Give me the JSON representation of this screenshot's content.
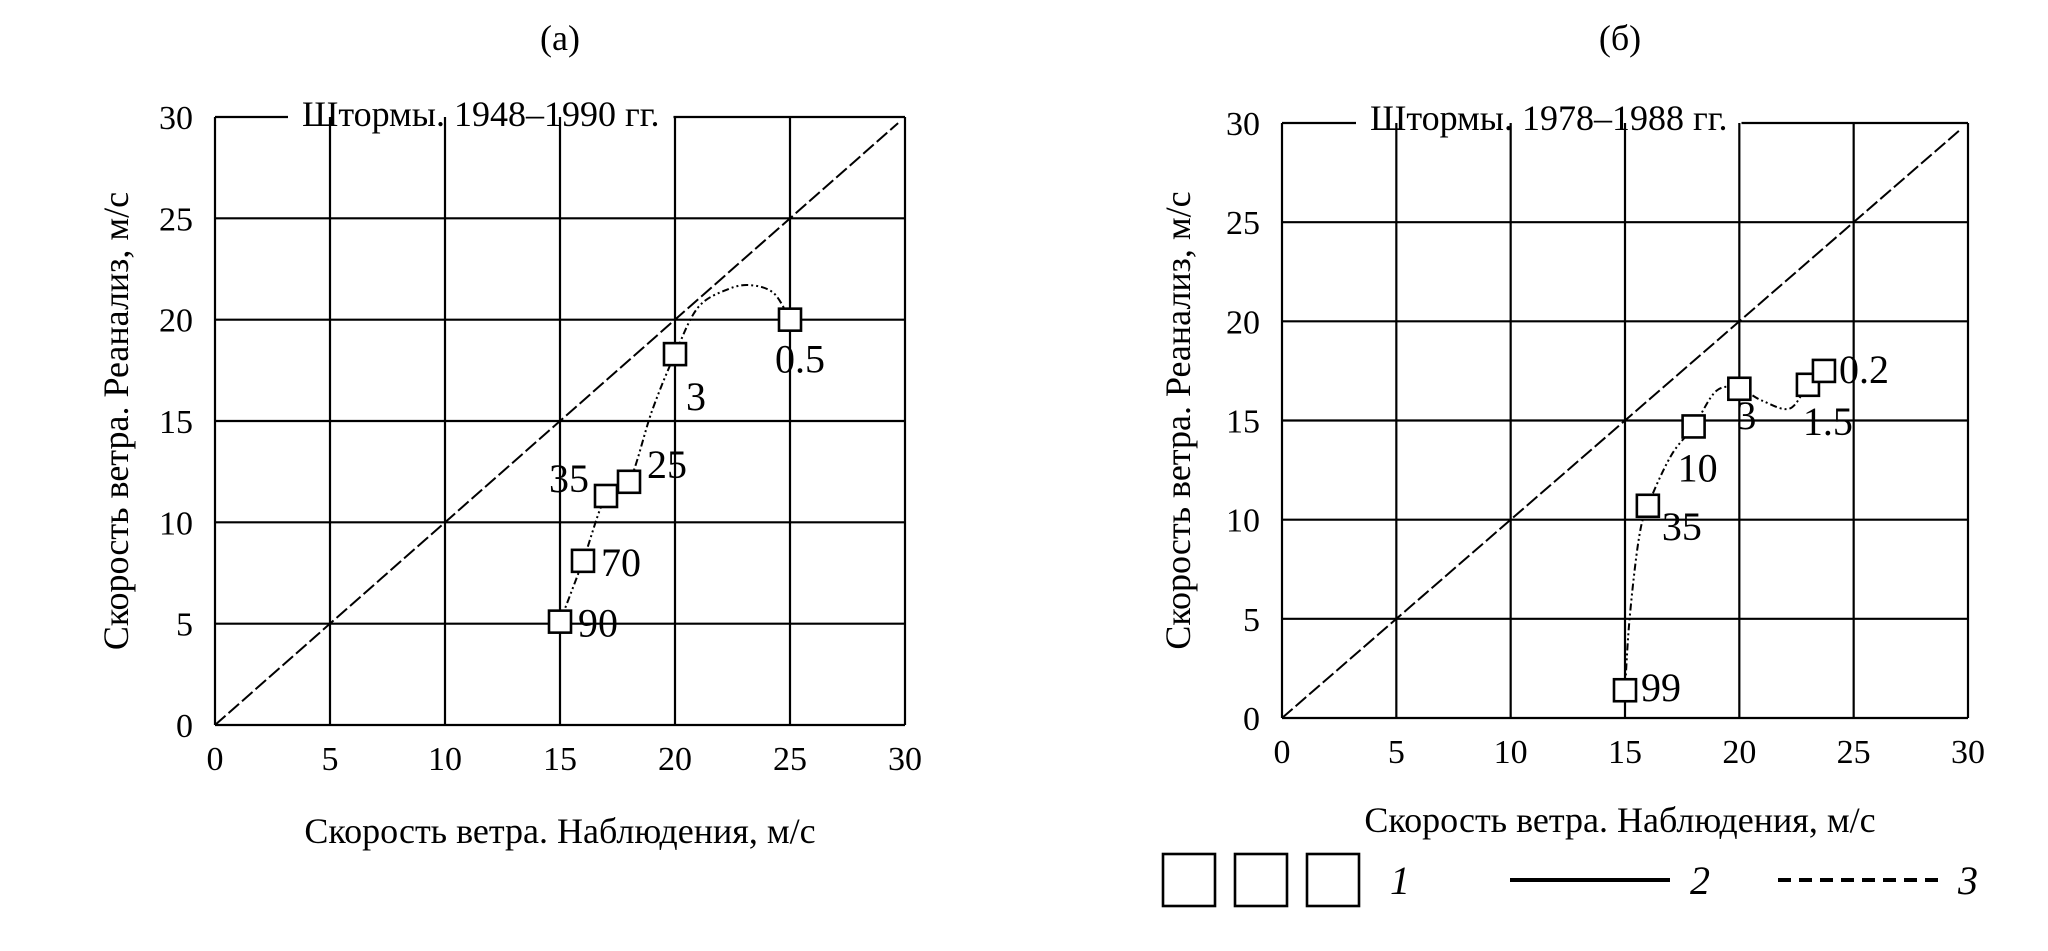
{
  "chart_data": [
    {
      "type": "scatter",
      "panel_label": "(а)",
      "title": "Штормы. 1948–1990 гг.",
      "xlabel": "Скорость ветра. Наблюдения, м/с",
      "ylabel": "Скорость ветра. Реанализ, м/с",
      "xlim": [
        0,
        30
      ],
      "ylim": [
        0,
        30
      ],
      "xticks": [
        "0",
        "5",
        "10",
        "15",
        "20",
        "25",
        "30"
      ],
      "yticks": [
        "0",
        "5",
        "10",
        "15",
        "20",
        "25",
        "30"
      ],
      "grid": true,
      "points": [
        {
          "x": 15,
          "y": 5.1,
          "label": "90"
        },
        {
          "x": 16,
          "y": 8.1,
          "label": "70"
        },
        {
          "x": 17,
          "y": 11.3,
          "label": "35"
        },
        {
          "x": 18,
          "y": 12,
          "label": "25"
        },
        {
          "x": 20,
          "y": 18.3,
          "label": "3"
        },
        {
          "x": 25,
          "y": 20,
          "label": "0.5"
        }
      ],
      "curve": [
        {
          "x": 15,
          "y": 5.1
        },
        {
          "x": 16,
          "y": 8.1
        },
        {
          "x": 17,
          "y": 11.3
        },
        {
          "x": 18,
          "y": 12
        },
        {
          "x": 19,
          "y": 15.5
        },
        {
          "x": 20,
          "y": 18.3
        },
        {
          "x": 21,
          "y": 20.6
        },
        {
          "x": 22.3,
          "y": 21.5
        },
        {
          "x": 23.3,
          "y": 21.7
        },
        {
          "x": 24.3,
          "y": 21.3
        },
        {
          "x": 25,
          "y": 20
        }
      ]
    },
    {
      "type": "scatter",
      "panel_label": "(б)",
      "title": "Штормы. 1978–1988 гг.",
      "xlabel": "Скорость ветра. Наблюдения, м/с",
      "ylabel": "Скорость ветра. Реанализ, м/с",
      "xlim": [
        0,
        30
      ],
      "ylim": [
        0,
        30
      ],
      "xticks": [
        "0",
        "5",
        "10",
        "15",
        "20",
        "25",
        "30"
      ],
      "yticks": [
        "0",
        "5",
        "10",
        "15",
        "20",
        "25",
        "30"
      ],
      "grid": true,
      "points": [
        {
          "x": 15,
          "y": 1.4,
          "label": "99"
        },
        {
          "x": 16,
          "y": 10.7,
          "label": "35"
        },
        {
          "x": 18,
          "y": 14.7,
          "label": "10"
        },
        {
          "x": 20,
          "y": 16.6,
          "label": "3"
        },
        {
          "x": 23,
          "y": 16.8,
          "label": "1.5"
        },
        {
          "x": 23.7,
          "y": 17.5,
          "label": "0.2"
        }
      ],
      "curve": [
        {
          "x": 15,
          "y": 1.4
        },
        {
          "x": 15.2,
          "y": 5
        },
        {
          "x": 15.6,
          "y": 9
        },
        {
          "x": 16,
          "y": 10.7
        },
        {
          "x": 17,
          "y": 13.2
        },
        {
          "x": 18,
          "y": 14.7
        },
        {
          "x": 19,
          "y": 16.5
        },
        {
          "x": 20,
          "y": 16.6
        },
        {
          "x": 21,
          "y": 16
        },
        {
          "x": 22.2,
          "y": 15.6
        },
        {
          "x": 23,
          "y": 16.8
        },
        {
          "x": 23.7,
          "y": 17.5
        }
      ]
    }
  ],
  "legend": [
    {
      "symbol": "squares",
      "label": "1"
    },
    {
      "symbol": "solid-line",
      "label": "2"
    },
    {
      "symbol": "dashed-line",
      "label": "3"
    }
  ]
}
